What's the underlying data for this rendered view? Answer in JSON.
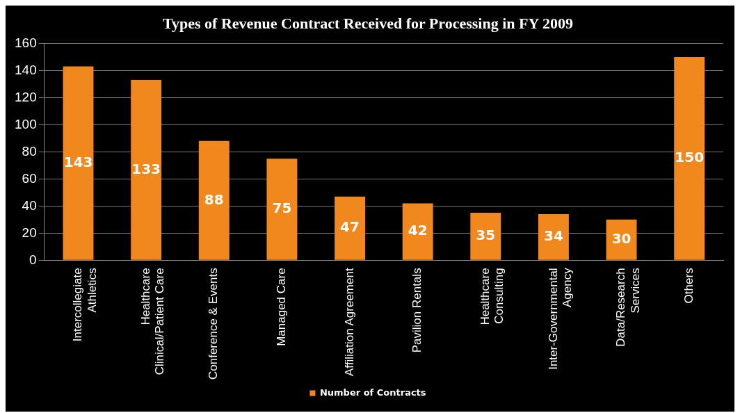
{
  "chart_data": {
    "type": "bar",
    "title": "Types of Revenue Contract Received for Processing in FY 2009",
    "categories": [
      "Intercollegiate\nAthletics",
      "Healthcare\nClinical/Patient Care",
      "Conference & Events",
      "Managed Care",
      "Affiliation Agreement",
      "Pavilion Rentals",
      "Healthcare\nConsulting",
      "Inter-Governmental\nAgency",
      "Data/Research\nServices",
      "Others"
    ],
    "series": [
      {
        "name": "Number of Contracts",
        "color": "#f0881e",
        "values": [
          143,
          133,
          88,
          75,
          47,
          42,
          35,
          34,
          30,
          150
        ]
      }
    ],
    "ylim": [
      0,
      160
    ],
    "yticks": [
      0,
      20,
      40,
      60,
      80,
      100,
      120,
      140,
      160
    ],
    "grid": "y",
    "legend": "bottom",
    "data_labels": true
  }
}
